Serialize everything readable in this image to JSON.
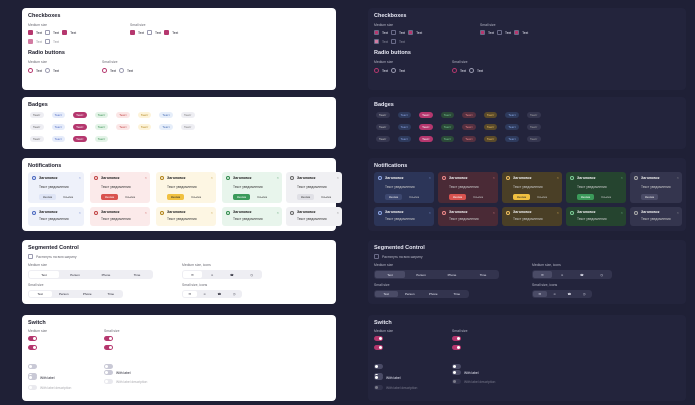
{
  "checkboxes": {
    "title": "Checkboxes",
    "medium": "Medium size",
    "small": "Small size",
    "item": "Text"
  },
  "radio": {
    "title": "Radio buttons",
    "medium": "Medium size",
    "small": "Small size",
    "item": "Text"
  },
  "badges": {
    "title": "Badges",
    "item": "Текст"
  },
  "notifications": {
    "title": "Notifications",
    "heading": "Заголовок",
    "text": "Текст уведомления",
    "primary": "Кнопка",
    "secondary": "Ссылка"
  },
  "segmented": {
    "title": "Segmented Control",
    "stretch": "Растянуть на всю ширину",
    "medium": "Medium size",
    "small": "Small size",
    "medium_icons": "Medium size, icons",
    "small_icons": "Small size, icons",
    "items": [
      "Text",
      "Person",
      "Phone",
      "Time"
    ]
  },
  "switch": {
    "title": "Switch",
    "medium": "Medium size",
    "small": "Small size",
    "with_label": "With label",
    "with_label_desc": "With label description"
  },
  "colors": {
    "accent": "#b5376e",
    "lightBg": "#ffffff",
    "darkBg": "#23243c"
  }
}
